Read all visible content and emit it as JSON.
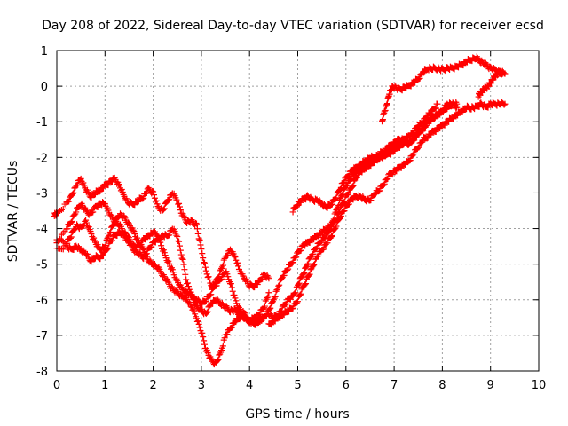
{
  "chart_data": {
    "type": "scatter",
    "title": "Day 208 of 2022, Sidereal Day-to-day VTEC variation (SDTVAR) for receiver ecsd",
    "xlabel": "GPS time / hours",
    "ylabel": "SDTVAR / TECUs",
    "xlim": [
      0,
      10
    ],
    "ylim": [
      -8,
      1
    ],
    "xticks": [
      0,
      1,
      2,
      3,
      4,
      5,
      6,
      7,
      8,
      9,
      10
    ],
    "yticks": [
      -8,
      -7,
      -6,
      -5,
      -4,
      -3,
      -2,
      -1,
      0,
      1
    ],
    "grid": true,
    "marker": "+",
    "series_color": "#ff0000",
    "series": [
      {
        "x": [
          -0.05,
          0.0,
          0.2,
          0.3,
          0.4,
          0.5,
          0.6,
          0.7,
          0.8,
          0.9,
          1.0,
          1.1,
          1.2,
          1.3,
          1.4,
          1.5,
          1.6,
          1.7,
          1.8,
          1.9,
          2.0,
          2.1,
          2.2,
          2.3,
          2.4,
          2.5,
          2.6,
          2.7,
          2.8,
          2.9,
          3.0,
          3.1,
          3.2,
          3.3,
          3.4,
          3.5,
          3.6,
          3.7,
          3.8,
          3.9,
          4.0,
          4.1,
          4.2,
          4.3,
          4.4
        ],
        "y": [
          -3.6,
          -3.6,
          -3.3,
          -3.1,
          -2.8,
          -2.6,
          -2.9,
          -3.1,
          -3.0,
          -2.9,
          -2.8,
          -2.7,
          -2.6,
          -2.8,
          -3.1,
          -3.3,
          -3.3,
          -3.2,
          -3.1,
          -2.9,
          -3.0,
          -3.4,
          -3.5,
          -3.2,
          -3.0,
          -3.2,
          -3.6,
          -3.8,
          -3.8,
          -3.9,
          -4.6,
          -5.2,
          -5.6,
          -5.6,
          -5.4,
          -5.2,
          -5.5,
          -6.0,
          -6.3,
          -6.4,
          -6.6,
          -6.5,
          -6.4,
          -6.2,
          -5.8
        ]
      },
      {
        "x": [
          0.0,
          0.2,
          0.3,
          0.4,
          0.5,
          0.6,
          0.7,
          0.8,
          0.9,
          1.0,
          1.1,
          1.2,
          1.3,
          1.4,
          1.5,
          1.6,
          1.7,
          1.8,
          1.9,
          2.0,
          2.1,
          2.2,
          2.3,
          2.4,
          2.5,
          2.6,
          2.7,
          2.8,
          2.9,
          3.0,
          3.1,
          3.2,
          3.3,
          3.4,
          3.5,
          3.6,
          3.7,
          3.8,
          3.9,
          4.0,
          4.1,
          4.2,
          4.3,
          4.4
        ],
        "y": [
          -4.4,
          -4.0,
          -3.8,
          -3.5,
          -3.3,
          -3.5,
          -3.6,
          -3.4,
          -3.3,
          -3.3,
          -3.6,
          -3.8,
          -3.9,
          -4.1,
          -4.3,
          -4.5,
          -4.5,
          -4.3,
          -4.2,
          -4.1,
          -4.2,
          -4.6,
          -4.9,
          -5.2,
          -5.5,
          -5.7,
          -5.8,
          -5.9,
          -6.0,
          -6.1,
          -6.0,
          -5.8,
          -5.5,
          -5.2,
          -4.8,
          -4.6,
          -4.8,
          -5.2,
          -5.4,
          -5.6,
          -5.6,
          -5.5,
          -5.3,
          -5.4
        ]
      },
      {
        "x": [
          0.0,
          0.2,
          0.3,
          0.4,
          0.5,
          0.6,
          0.7,
          0.8,
          0.9,
          1.0,
          1.1,
          1.2,
          1.3,
          1.4,
          1.5,
          1.6,
          1.7,
          1.8,
          1.9,
          2.0,
          2.1,
          2.2,
          2.3,
          2.4,
          2.5,
          2.6,
          2.7,
          2.8,
          2.9,
          3.0,
          3.1,
          3.2,
          3.3,
          3.4,
          3.5,
          3.6,
          3.7,
          3.8,
          3.9,
          4.0,
          4.1,
          4.2,
          4.3
        ],
        "y": [
          -4.6,
          -4.5,
          -4.6,
          -4.5,
          -4.6,
          -4.7,
          -4.9,
          -4.8,
          -4.8,
          -4.7,
          -4.4,
          -4.2,
          -4.1,
          -4.2,
          -4.4,
          -4.6,
          -4.7,
          -4.8,
          -4.6,
          -4.4,
          -4.3,
          -4.2,
          -4.2,
          -4.0,
          -4.2,
          -4.8,
          -5.5,
          -5.9,
          -6.2,
          -6.3,
          -6.4,
          -6.1,
          -6.0,
          -6.1,
          -6.2,
          -6.3,
          -6.3,
          -6.4,
          -6.5,
          -6.6,
          -6.7,
          -6.6,
          -6.5
        ]
      },
      {
        "x": [
          0.0,
          0.2,
          0.3,
          0.4,
          0.5,
          0.6,
          0.7,
          0.8,
          0.9,
          1.0,
          1.1,
          1.2,
          1.3,
          1.4,
          1.5,
          1.6,
          1.7,
          1.8,
          1.9,
          2.0,
          2.1,
          2.2,
          2.3,
          2.4,
          2.5,
          2.6,
          2.7,
          2.8,
          2.9,
          3.0,
          3.1,
          3.2,
          3.3,
          3.4,
          3.5,
          3.6,
          3.7,
          3.8,
          3.9,
          4.0,
          4.1,
          4.2,
          4.3
        ],
        "y": [
          -4.3,
          -4.4,
          -4.2,
          -3.9,
          -4.0,
          -3.8,
          -4.1,
          -4.4,
          -4.6,
          -4.5,
          -4.1,
          -3.8,
          -3.6,
          -3.7,
          -3.9,
          -4.1,
          -4.4,
          -4.6,
          -4.9,
          -5.0,
          -5.1,
          -5.3,
          -5.5,
          -5.7,
          -5.8,
          -5.9,
          -6.0,
          -6.2,
          -6.5,
          -6.9,
          -7.4,
          -7.7,
          -7.8,
          -7.5,
          -7.0,
          -6.8,
          -6.6,
          -6.5,
          -6.5,
          -6.6,
          -6.6,
          -6.6,
          -6.5
        ]
      },
      {
        "x": [
          4.2,
          4.3,
          4.4,
          4.5,
          4.6,
          4.7,
          4.8,
          4.9,
          5.0,
          5.1,
          5.2,
          5.3,
          5.4,
          5.5,
          5.6,
          5.7,
          5.8,
          5.9,
          6.0,
          6.1,
          6.2,
          6.3,
          6.4,
          6.5,
          6.6,
          6.7,
          6.8,
          6.9,
          7.0,
          7.1,
          7.2,
          7.3,
          7.4,
          7.5,
          7.6,
          7.7,
          7.8,
          7.9,
          8.0,
          8.1,
          8.2,
          8.3
        ],
        "y": [
          -6.6,
          -6.5,
          -6.3,
          -6.0,
          -5.6,
          -5.3,
          -5.1,
          -4.9,
          -4.7,
          -4.5,
          -4.4,
          -4.3,
          -4.2,
          -4.1,
          -4.0,
          -3.9,
          -3.7,
          -3.4,
          -3.1,
          -2.9,
          -2.6,
          -2.4,
          -2.3,
          -2.2,
          -2.1,
          -2.0,
          -2.0,
          -1.8,
          -1.7,
          -1.6,
          -1.5,
          -1.6,
          -1.5,
          -1.3,
          -1.2,
          -1.0,
          -0.9,
          -0.8,
          -0.7,
          -0.5,
          -0.5,
          -0.6
        ]
      },
      {
        "x": [
          4.4,
          4.5,
          4.6,
          4.7,
          4.8,
          4.9,
          5.0,
          5.1,
          5.2,
          5.3,
          5.4,
          5.5,
          5.6,
          5.7,
          5.8,
          5.9,
          6.0,
          6.1,
          6.2,
          6.3,
          6.4,
          6.5,
          6.6,
          6.7,
          6.8,
          6.9,
          7.0,
          7.1,
          7.2,
          7.3,
          7.4,
          7.5,
          7.6,
          7.7,
          7.8,
          7.9,
          8.0,
          8.1,
          8.2,
          8.3
        ],
        "y": [
          -6.4,
          -6.5,
          -6.4,
          -6.2,
          -6.0,
          -5.9,
          -5.6,
          -5.3,
          -5.0,
          -4.7,
          -4.5,
          -4.3,
          -4.2,
          -3.9,
          -3.5,
          -3.1,
          -2.8,
          -2.6,
          -2.4,
          -2.3,
          -2.2,
          -2.1,
          -2.1,
          -2.0,
          -1.9,
          -1.9,
          -1.8,
          -1.7,
          -1.6,
          -1.6,
          -1.5,
          -1.3,
          -1.2,
          -1.0,
          -0.9,
          -0.8,
          -0.7,
          -0.6,
          -0.5,
          -0.5
        ]
      },
      {
        "x": [
          4.4,
          4.5,
          4.6,
          4.7,
          4.8,
          4.9,
          5.0,
          5.1,
          5.2,
          5.3,
          5.4,
          5.5,
          5.6,
          5.7,
          5.8,
          5.9,
          6.0,
          6.1,
          6.2,
          6.3,
          6.4,
          6.5,
          6.6,
          6.7,
          6.8,
          6.9,
          7.0,
          7.1,
          7.2,
          7.3,
          7.4,
          7.5,
          7.6,
          7.7,
          7.8,
          7.9,
          8.0,
          8.1,
          8.2,
          8.3,
          8.4,
          8.5,
          8.6,
          8.7,
          8.8,
          8.9,
          9.0,
          9.1,
          9.2,
          9.3
        ],
        "y": [
          -6.7,
          -6.6,
          -6.5,
          -6.4,
          -6.3,
          -6.2,
          -6.0,
          -5.7,
          -5.4,
          -5.1,
          -4.8,
          -4.6,
          -4.4,
          -4.2,
          -3.9,
          -3.6,
          -3.4,
          -3.2,
          -3.1,
          -3.1,
          -3.2,
          -3.2,
          -3.0,
          -2.9,
          -2.7,
          -2.5,
          -2.4,
          -2.3,
          -2.2,
          -2.1,
          -1.9,
          -1.7,
          -1.5,
          -1.4,
          -1.3,
          -1.2,
          -1.1,
          -1.0,
          -0.9,
          -0.8,
          -0.7,
          -0.6,
          -0.6,
          -0.6,
          -0.5,
          -0.6,
          -0.5,
          -0.5,
          -0.5,
          -0.5
        ]
      },
      {
        "x": [
          4.9,
          5.0,
          5.1,
          5.2,
          5.3,
          5.4,
          5.5,
          5.6,
          5.7,
          5.8,
          5.9,
          6.0,
          6.1,
          6.2,
          6.3,
          6.4,
          6.5,
          6.6,
          6.7,
          6.8,
          6.9,
          7.0,
          7.1,
          7.2,
          7.3,
          7.4,
          7.5,
          7.6,
          7.7,
          7.8,
          7.9
        ],
        "y": [
          -3.5,
          -3.3,
          -3.2,
          -3.1,
          -3.2,
          -3.2,
          -3.3,
          -3.4,
          -3.3,
          -3.1,
          -2.8,
          -2.6,
          -2.4,
          -2.3,
          -2.2,
          -2.1,
          -2.0,
          -2.0,
          -1.9,
          -1.8,
          -1.7,
          -1.6,
          -1.5,
          -1.5,
          -1.4,
          -1.3,
          -1.1,
          -1.0,
          -0.8,
          -0.7,
          -0.5
        ]
      },
      {
        "x": [
          6.75,
          6.8,
          6.85,
          6.9,
          6.95,
          7.0,
          7.1,
          7.2,
          7.3,
          7.4,
          7.5,
          7.6,
          7.7,
          7.8,
          7.9,
          8.0,
          8.1,
          8.2,
          8.3,
          8.4,
          8.5,
          8.6,
          8.7,
          8.8,
          8.9,
          9.0,
          9.1,
          9.2,
          9.3
        ],
        "y": [
          -1.0,
          -0.7,
          -0.5,
          -0.2,
          -0.05,
          0.0,
          -0.1,
          -0.05,
          0.0,
          0.1,
          0.2,
          0.4,
          0.5,
          0.5,
          0.5,
          0.45,
          0.5,
          0.5,
          0.55,
          0.6,
          0.7,
          0.75,
          0.8,
          0.7,
          0.6,
          0.5,
          0.45,
          0.4,
          0.35
        ]
      },
      {
        "x": [
          8.75,
          8.8,
          8.85,
          8.9,
          8.95,
          9.0,
          9.05,
          9.1,
          9.15,
          9.2,
          9.25
        ],
        "y": [
          -0.25,
          -0.2,
          -0.1,
          -0.05,
          0.0,
          0.1,
          0.2,
          0.3,
          0.35,
          0.4,
          0.35
        ]
      }
    ]
  }
}
